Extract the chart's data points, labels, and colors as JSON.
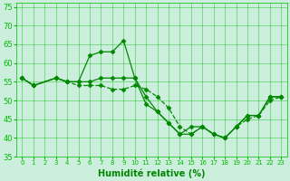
{
  "xlabel": "Humidité relative (%)",
  "bg_color": "#cceedd",
  "grid_color": "#00bb00",
  "line_color": "#008800",
  "xlim": [
    -0.5,
    23.5
  ],
  "ylim": [
    35,
    76
  ],
  "yticks": [
    35,
    40,
    45,
    50,
    55,
    60,
    65,
    70,
    75
  ],
  "xticks": [
    0,
    1,
    2,
    3,
    4,
    5,
    6,
    7,
    8,
    9,
    10,
    11,
    12,
    13,
    14,
    15,
    16,
    17,
    18,
    19,
    20,
    21,
    22,
    23
  ],
  "series": [
    {
      "x": [
        0,
        1,
        3,
        4,
        5,
        6,
        7,
        8,
        9,
        10,
        11,
        12,
        13,
        14,
        15,
        16,
        17,
        18,
        19,
        20,
        21,
        22,
        23
      ],
      "y": [
        56,
        54,
        56,
        55,
        55,
        62,
        63,
        63,
        66,
        56,
        51,
        47,
        44,
        41,
        43,
        43,
        41,
        40,
        43,
        46,
        46,
        51,
        51
      ],
      "marker": "D",
      "ms": 2.5,
      "lw": 0.9,
      "linestyle": "-"
    },
    {
      "x": [
        0,
        1,
        3,
        4,
        5,
        6,
        7,
        8,
        9,
        10,
        11,
        12,
        13,
        14,
        15,
        16,
        17,
        18,
        19,
        20,
        21,
        22,
        23
      ],
      "y": [
        56,
        54,
        56,
        55,
        55,
        55,
        56,
        56,
        56,
        56,
        49,
        47,
        44,
        41,
        41,
        43,
        41,
        40,
        43,
        46,
        46,
        51,
        51
      ],
      "marker": "D",
      "ms": 2.5,
      "lw": 0.9,
      "linestyle": "-"
    },
    {
      "x": [
        0,
        1,
        3,
        4,
        5,
        6,
        7,
        8,
        9,
        10,
        11,
        12,
        13,
        14,
        15,
        16,
        17,
        18,
        19,
        20,
        21,
        22,
        23
      ],
      "y": [
        56,
        54,
        56,
        55,
        54,
        54,
        54,
        53,
        53,
        54,
        53,
        51,
        48,
        43,
        41,
        43,
        41,
        40,
        43,
        45,
        46,
        50,
        51
      ],
      "marker": "D",
      "ms": 2.5,
      "lw": 0.9,
      "linestyle": "--"
    }
  ],
  "xlabel_fontsize": 7,
  "tick_fontsize": 5,
  "xlabel_color": "#008800"
}
